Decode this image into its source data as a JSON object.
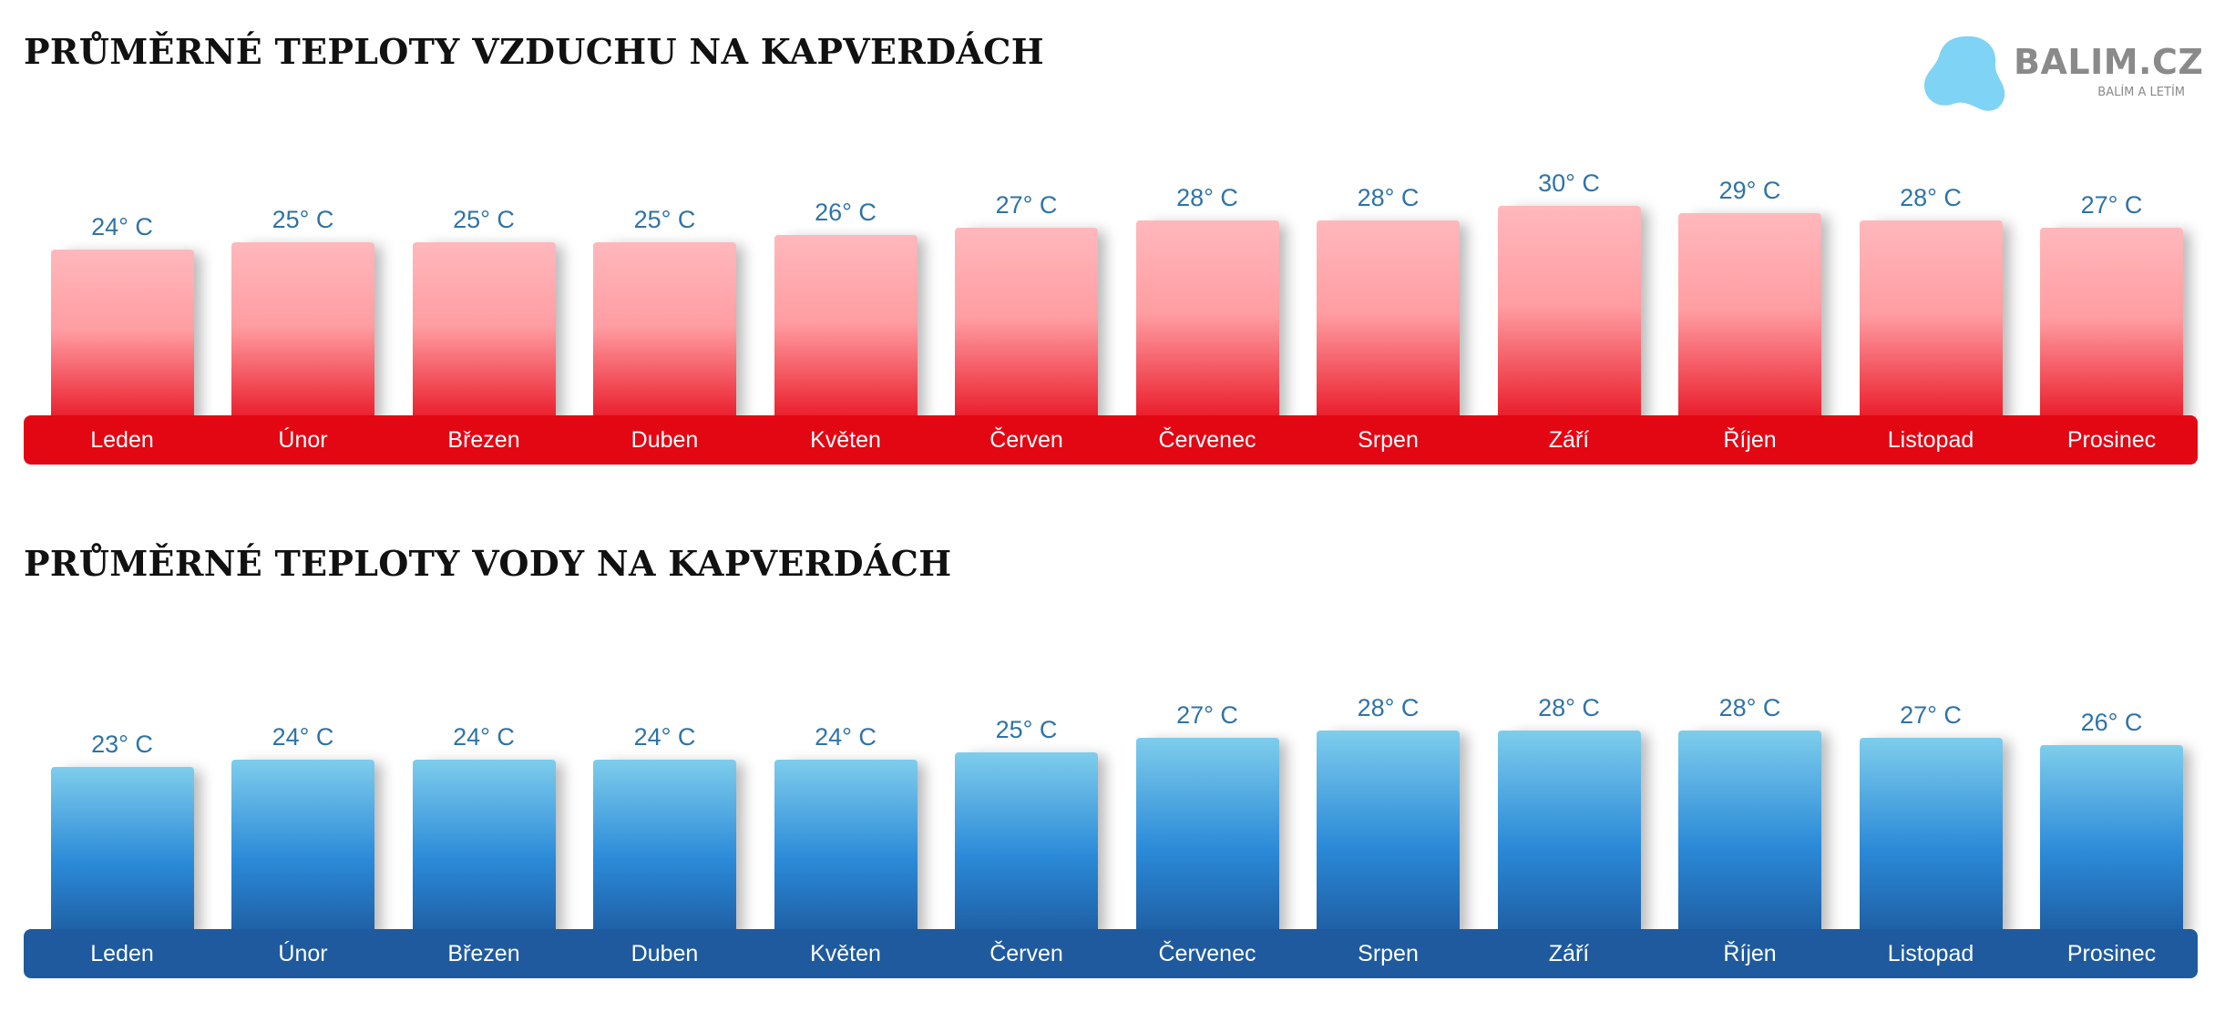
{
  "air": {
    "title": "PRŮMĚRNÉ TEPLOTY VZDUCHU NA KAPVERDÁCH"
  },
  "water": {
    "title": "PRŮMĚRNÉ TEPLOTY VODY NA KAPVERDÁCH"
  },
  "logo": {
    "name": "BALIM.CZ",
    "tagline": "BALÍM A LETÍM"
  },
  "chart_data": [
    {
      "type": "bar",
      "title": "PRŮMĚRNÉ TEPLOTY VZDUCHU NA KAPVERDÁCH",
      "categories": [
        "Leden",
        "Únor",
        "Březen",
        "Duben",
        "Květen",
        "Červen",
        "Červenec",
        "Srpen",
        "Září",
        "Říjen",
        "Listopad",
        "Prosinec"
      ],
      "values": [
        24,
        25,
        25,
        25,
        26,
        27,
        28,
        28,
        30,
        29,
        28,
        27
      ],
      "value_labels": [
        "24° C",
        "25° C",
        "25° C",
        "25° C",
        "26° C",
        "27° C",
        "28° C",
        "28° C",
        "30° C",
        "29° C",
        "28° C",
        "27° C"
      ],
      "unit": "° C",
      "grid": false,
      "colors": {
        "bar_top": "#ffb8bc",
        "bar_bottom": "#e8101f",
        "strip": "#e30613",
        "value_text": "#2f73a6"
      }
    },
    {
      "type": "bar",
      "title": "PRŮMĚRNÉ TEPLOTY VODY NA KAPVERDÁCH",
      "categories": [
        "Leden",
        "Únor",
        "Březen",
        "Duben",
        "Květen",
        "Červen",
        "Červenec",
        "Srpen",
        "Září",
        "Říjen",
        "Listopad",
        "Prosinec"
      ],
      "values": [
        23,
        24,
        24,
        24,
        24,
        25,
        27,
        28,
        28,
        28,
        27,
        26
      ],
      "value_labels": [
        "23° C",
        "24° C",
        "24° C",
        "24° C",
        "24° C",
        "25° C",
        "27° C",
        "28° C",
        "28° C",
        "28° C",
        "27° C",
        "26° C"
      ],
      "unit": "° C",
      "grid": false,
      "colors": {
        "bar_top": "#7ecdec",
        "bar_bottom": "#1d5a9e",
        "strip": "#1f5a9e",
        "value_text": "#2f73a6"
      }
    }
  ]
}
